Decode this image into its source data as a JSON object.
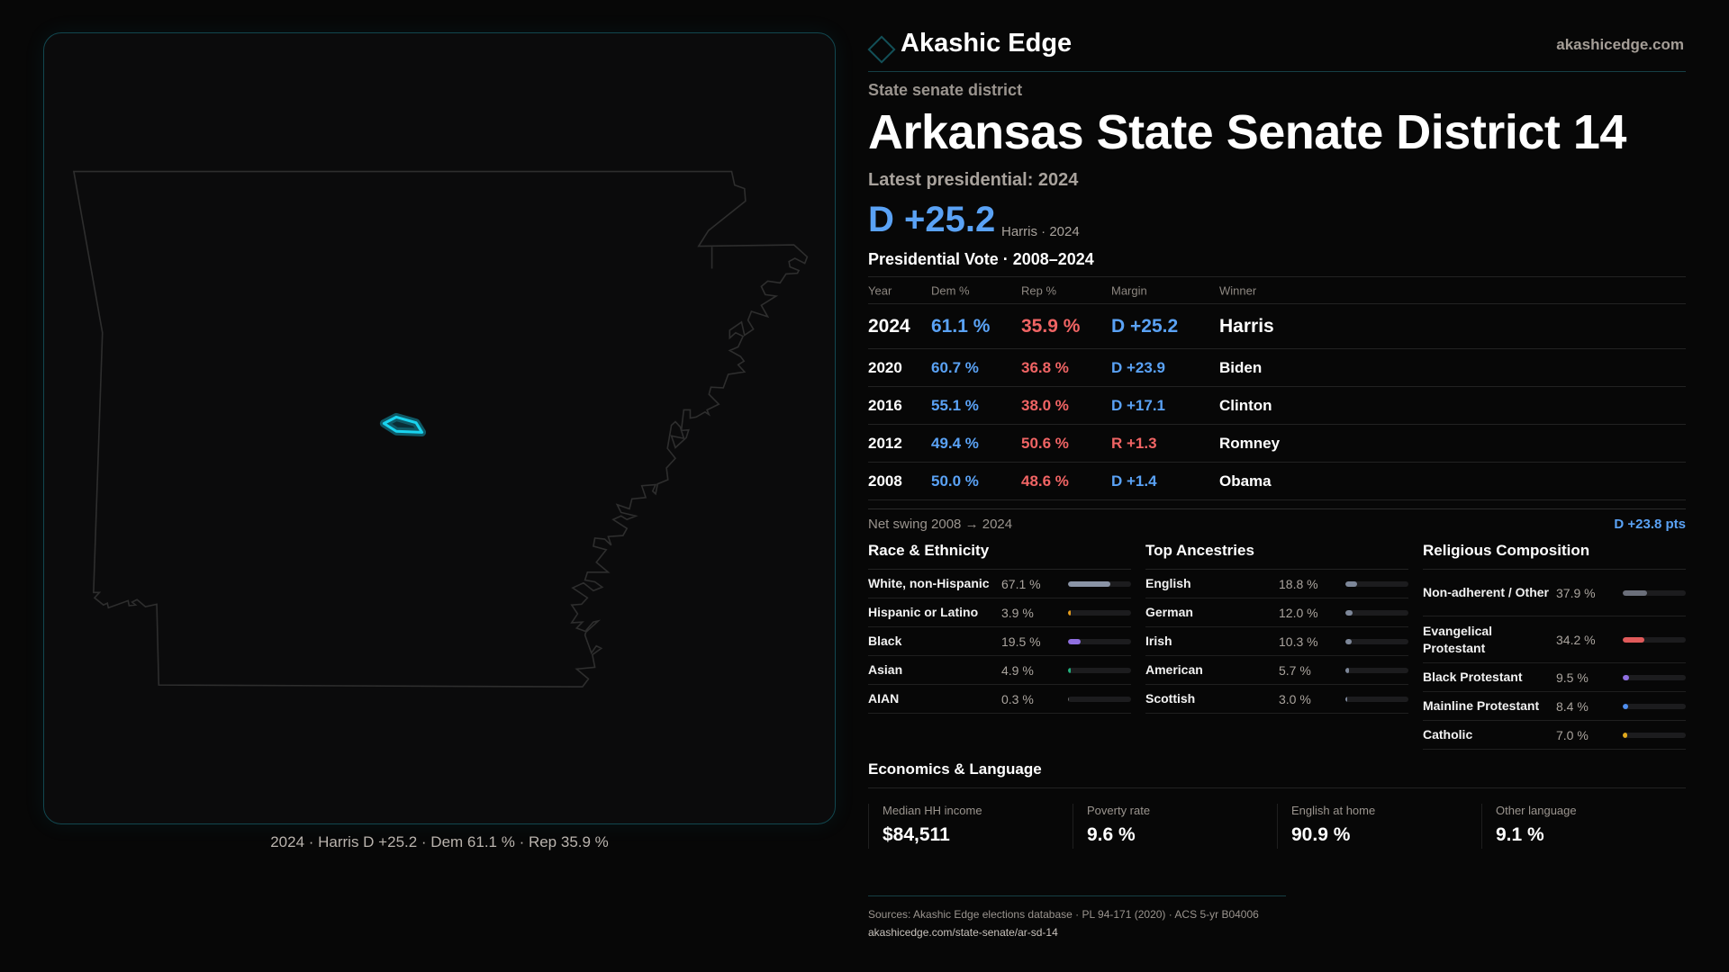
{
  "map": {
    "caption": "2024 · Harris D +25.2 · Dem 61.1 % · Rep 35.9 %",
    "highlight_color": "#19d3ef",
    "outline_color": "#2e2e2e"
  },
  "header": {
    "brand": "Akashic Edge",
    "site": "akashicedge.com",
    "logo_icon": "diamond-icon"
  },
  "district": {
    "kicker": "State senate district",
    "title": "Arkansas State Senate District 14",
    "latest": "Latest presidential: 2024",
    "margin": "D +25.2",
    "margin_sub": "Harris · 2024"
  },
  "pres": {
    "title": "Presidential Vote · 2008–2024",
    "headers": [
      "Year",
      "Dem %",
      "Rep %",
      "Margin",
      "Winner"
    ],
    "rows": [
      {
        "year": "2024",
        "dem": "61.1 %",
        "rep": "35.9 %",
        "margin": "D +25.2",
        "party": "D",
        "winner": "Harris"
      },
      {
        "year": "2020",
        "dem": "60.7 %",
        "rep": "36.8 %",
        "margin": "D +23.9",
        "party": "D",
        "winner": "Biden"
      },
      {
        "year": "2016",
        "dem": "55.1 %",
        "rep": "38.0 %",
        "margin": "D +17.1",
        "party": "D",
        "winner": "Clinton"
      },
      {
        "year": "2012",
        "dem": "49.4 %",
        "rep": "50.6 %",
        "margin": "R +1.3",
        "party": "R",
        "winner": "Romney"
      },
      {
        "year": "2008",
        "dem": "50.0 %",
        "rep": "48.6 %",
        "margin": "D +1.4",
        "party": "D",
        "winner": "Obama"
      }
    ]
  },
  "swing": {
    "label": "Net swing 2008 → 2024",
    "value": "D +23.8 pts"
  },
  "sections": [
    {
      "title": "Race & Ethnicity",
      "items": [
        {
          "label": "White, non-Hispanic",
          "pct": "67.1 %",
          "value": 67.1,
          "color": "#8a94a6"
        },
        {
          "label": "Hispanic or Latino",
          "pct": "3.9 %",
          "value": 3.9,
          "color": "#e29a1c"
        },
        {
          "label": "Black",
          "pct": "19.5 %",
          "value": 19.5,
          "color": "#8f6fe0"
        },
        {
          "label": "Asian",
          "pct": "4.9 %",
          "value": 4.9,
          "color": "#22b07d"
        },
        {
          "label": "AIAN",
          "pct": "0.3 %",
          "value": 0.3,
          "color": "#666"
        }
      ]
    },
    {
      "title": "Top Ancestries",
      "items": [
        {
          "label": "English",
          "pct": "18.8 %",
          "value": 18.8,
          "color": "#7d8799"
        },
        {
          "label": "German",
          "pct": "12.0 %",
          "value": 12.0,
          "color": "#7d8799"
        },
        {
          "label": "Irish",
          "pct": "10.3 %",
          "value": 10.3,
          "color": "#7d8799"
        },
        {
          "label": "American",
          "pct": "5.7 %",
          "value": 5.7,
          "color": "#7d8799"
        },
        {
          "label": "Scottish",
          "pct": "3.0 %",
          "value": 3.0,
          "color": "#7d8799"
        }
      ]
    },
    {
      "title": "Religious Composition",
      "items": [
        {
          "label": "Non-adherent / Other",
          "pct": "37.9 %",
          "value": 37.9,
          "color": "#6b6f7a"
        },
        {
          "label": "Evangelical Protestant",
          "pct": "34.2 %",
          "value": 34.2,
          "color": "#e05a5a"
        },
        {
          "label": "Black Protestant",
          "pct": "9.5 %",
          "value": 9.5,
          "color": "#8f6fe0"
        },
        {
          "label": "Mainline Protestant",
          "pct": "8.4 %",
          "value": 8.4,
          "color": "#4f8ff0"
        },
        {
          "label": "Catholic",
          "pct": "7.0 %",
          "value": 7.0,
          "color": "#e0a81c"
        }
      ]
    }
  ],
  "econ": {
    "title": "Economics & Language",
    "cards": [
      {
        "label": "Median HH income",
        "value": "$84,511"
      },
      {
        "label": "Poverty rate",
        "value": "9.6 %"
      },
      {
        "label": "English at home",
        "value": "90.9 %"
      },
      {
        "label": "Other language",
        "value": "9.1 %"
      }
    ]
  },
  "sources": {
    "text": "Sources: Akashic Edge elections database · PL 94-171 (2020) · ACS 5-yr B04006",
    "url": "akashicedge.com/state-senate/ar-sd-14"
  }
}
